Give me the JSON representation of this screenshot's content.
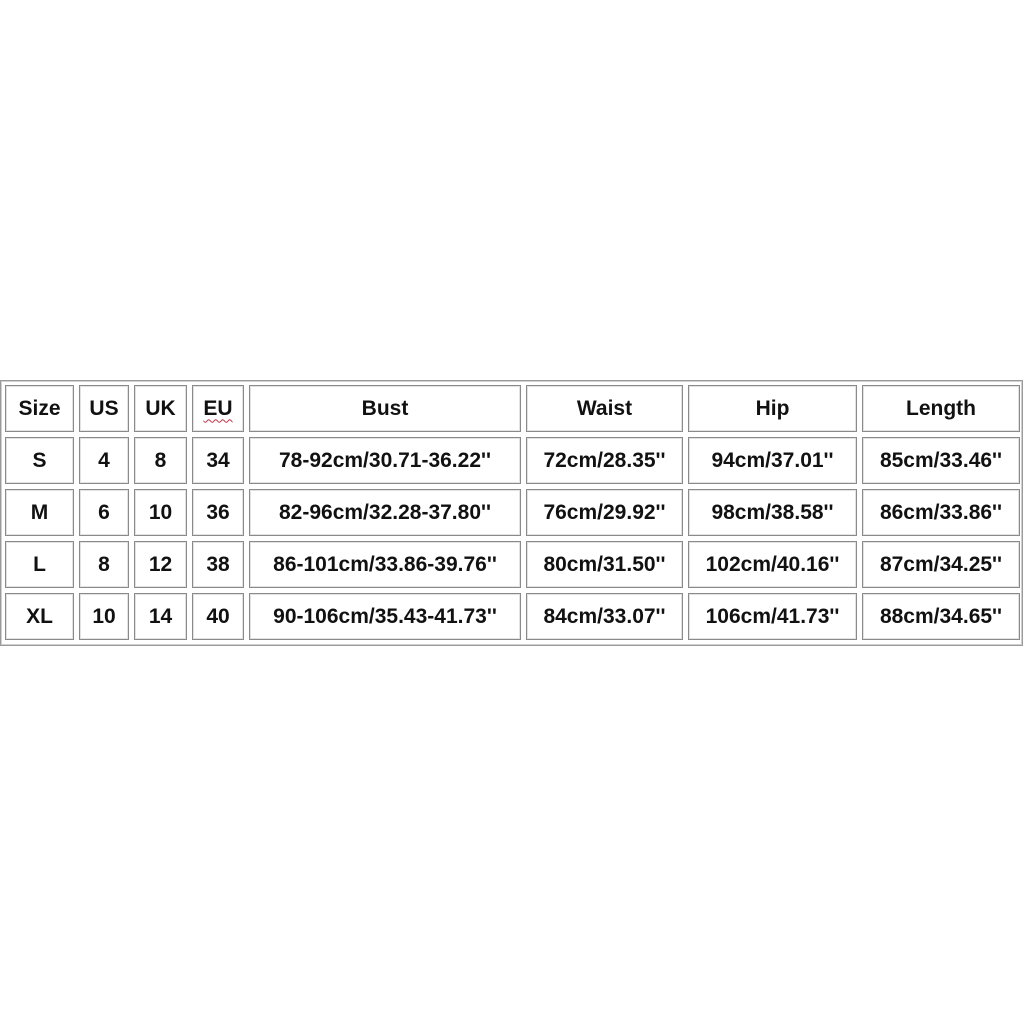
{
  "size_chart": {
    "headers": [
      "Size",
      "US",
      "UK",
      "EU",
      "Bust",
      "Waist",
      "Hip",
      "Length"
    ],
    "rows": [
      [
        "S",
        "4",
        "8",
        "34",
        "78-92cm/30.71-36.22''",
        "72cm/28.35''",
        "94cm/37.01''",
        "85cm/33.46''"
      ],
      [
        "M",
        "6",
        "10",
        "36",
        "82-96cm/32.28-37.80''",
        "76cm/29.92''",
        "98cm/38.58''",
        "86cm/33.86''"
      ],
      [
        "L",
        "8",
        "12",
        "38",
        "86-101cm/33.86-39.76''",
        "80cm/31.50''",
        "102cm/40.16''",
        "87cm/34.25''"
      ],
      [
        "XL",
        "10",
        "14",
        "40",
        "90-106cm/35.43-41.73''",
        "84cm/33.07''",
        "106cm/41.73''",
        "88cm/34.65''"
      ]
    ]
  }
}
